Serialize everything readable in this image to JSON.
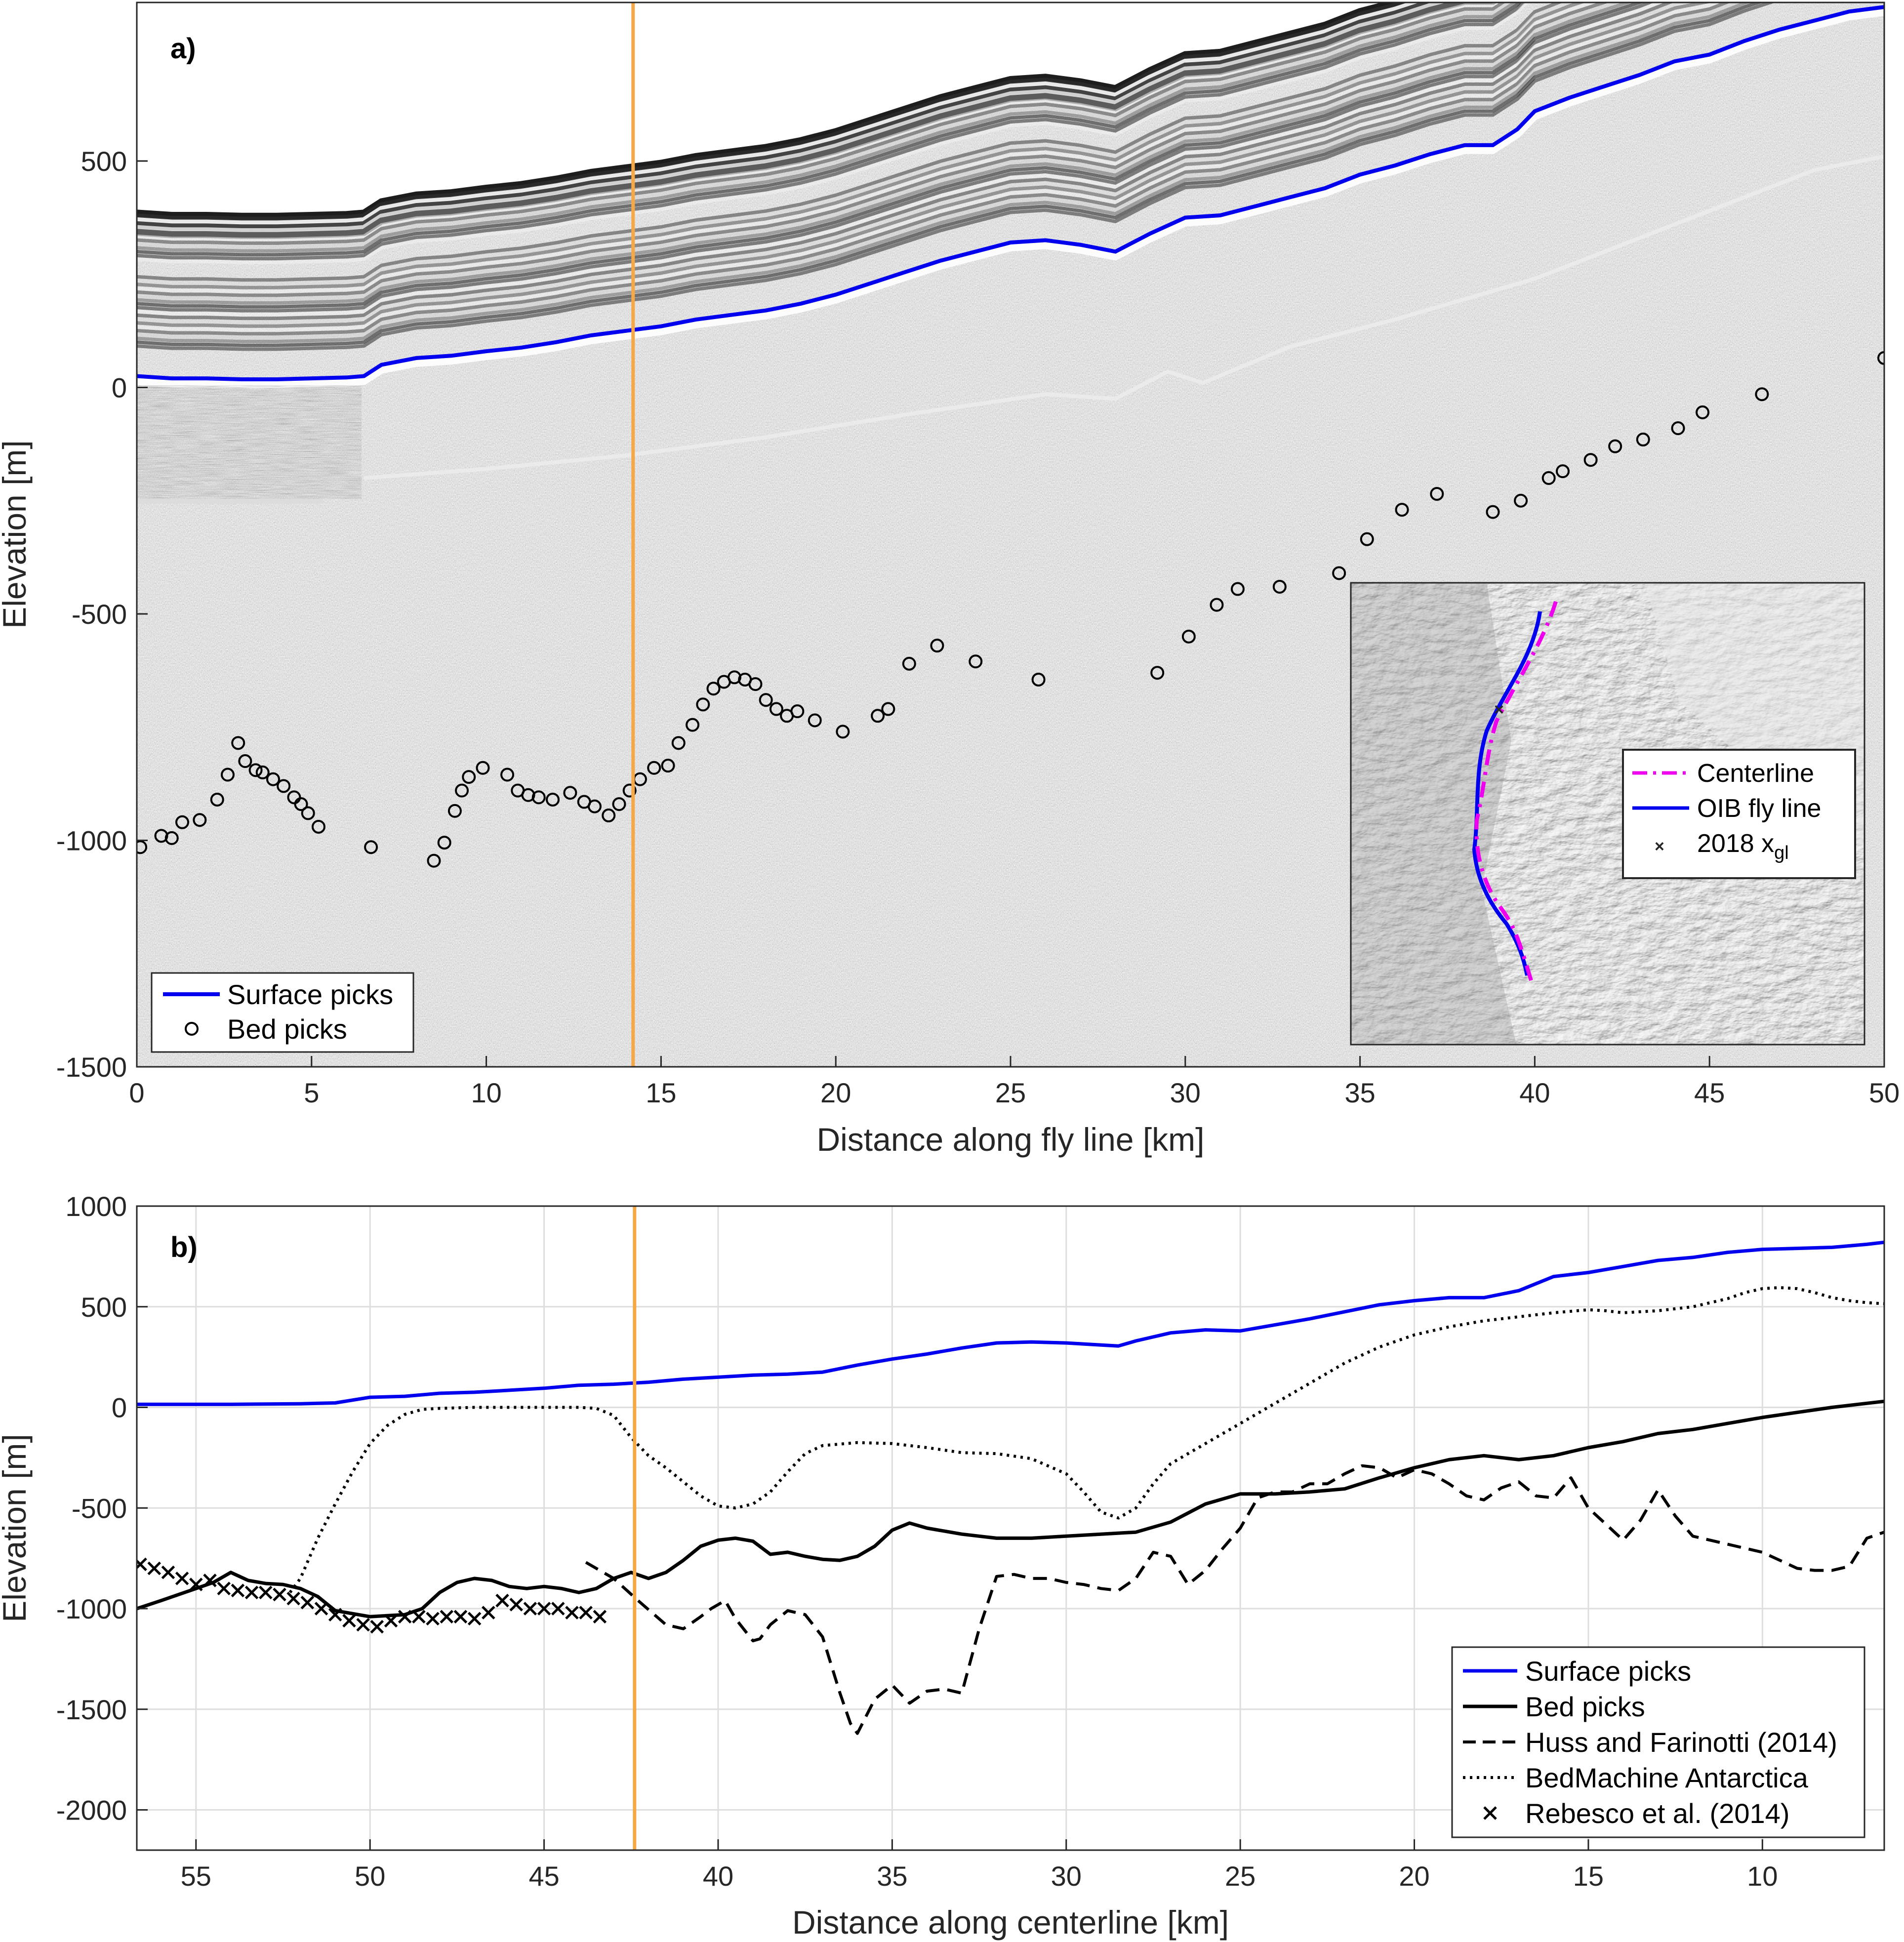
{
  "chart_data": [
    {
      "type": "scatter",
      "panel_label": "a)",
      "xlabel": "Distance along fly line [km]",
      "ylabel": "Elevation [m]",
      "xlim": [
        0,
        50
      ],
      "ylim": [
        -1500,
        850
      ],
      "xticks": [
        "0",
        "5",
        "10",
        "15",
        "20",
        "25",
        "30",
        "35",
        "40",
        "45",
        "50"
      ],
      "yticks": [
        "500",
        "0",
        "-500",
        "-1000",
        "-1500"
      ],
      "background": "radargram (greyscale radar echogram)",
      "vertical_marker_x": 14.2,
      "legend": {
        "placement": "bottom-left",
        "entries": [
          "Surface picks",
          "Bed picks"
        ]
      },
      "series": [
        {
          "name": "Surface picks",
          "style": "line",
          "x": [
            0,
            1,
            2,
            3,
            4,
            5,
            6,
            6.5,
            7,
            8,
            9,
            10,
            11,
            12,
            13,
            14,
            15,
            16,
            17,
            18,
            19,
            20,
            21,
            22,
            23,
            24,
            25,
            26,
            27,
            28,
            29,
            30,
            31,
            32,
            33,
            34,
            35,
            36,
            37,
            38,
            38.8,
            39.5,
            40,
            41,
            42,
            43,
            44,
            45,
            46,
            47,
            48,
            49,
            50
          ],
          "y": [
            25,
            20,
            20,
            18,
            18,
            20,
            22,
            25,
            50,
            65,
            70,
            80,
            88,
            100,
            115,
            125,
            135,
            150,
            160,
            170,
            185,
            205,
            230,
            255,
            280,
            300,
            320,
            325,
            315,
            300,
            340,
            375,
            380,
            400,
            420,
            440,
            470,
            490,
            515,
            535,
            535,
            570,
            610,
            640,
            665,
            690,
            720,
            735,
            765,
            790,
            810,
            830,
            840
          ]
        },
        {
          "name": "Bed picks",
          "style": "markers-circle",
          "x": [
            0.1,
            0.7,
            1,
            1.3,
            1.8,
            2.3,
            2.6,
            2.9,
            3.1,
            3.4,
            3.6,
            3.9,
            4.2,
            4.5,
            4.7,
            4.9,
            5.2,
            6.7,
            8.5,
            8.8,
            9.1,
            9.3,
            9.5,
            9.9,
            10.6,
            10.9,
            11.2,
            11.5,
            11.9,
            12.4,
            12.8,
            13.1,
            13.5,
            13.8,
            14.1,
            14.4,
            14.8,
            15.2,
            15.5,
            15.9,
            16.2,
            16.5,
            16.8,
            17.1,
            17.4,
            17.7,
            18,
            18.3,
            18.6,
            18.9,
            19.4,
            20.2,
            21.2,
            21.5,
            22.1,
            22.9,
            24,
            25.8,
            29.2,
            30.1,
            30.9,
            31.5,
            32.7,
            34.4,
            35.2,
            36.2,
            37.2,
            38.8,
            39.6,
            40.4,
            40.8,
            41.6,
            42.3,
            43.1,
            44.1,
            44.8,
            46.5,
            50
          ]
        }
      ],
      "bed_picks_y": [
        -1015,
        -990,
        -995,
        -960,
        -955,
        -910,
        -855,
        -785,
        -825,
        -845,
        -850,
        -865,
        -880,
        -905,
        -920,
        -940,
        -970,
        -1015,
        -1045,
        -1005,
        -935,
        -890,
        -860,
        -840,
        -855,
        -890,
        -900,
        -905,
        -910,
        -895,
        -915,
        -925,
        -945,
        -920,
        -890,
        -865,
        -840,
        -835,
        -785,
        -745,
        -700,
        -665,
        -650,
        -640,
        -645,
        -655,
        -690,
        -710,
        -725,
        -715,
        -735,
        -760,
        -725,
        -710,
        -610,
        -570,
        -605,
        -645,
        -630,
        -550,
        -480,
        -445,
        -440,
        -410,
        -335,
        -270,
        -235,
        -275,
        -250,
        -200,
        -185,
        -160,
        -130,
        -115,
        -90,
        -55,
        -15,
        65
      ],
      "inset": {
        "type": "map",
        "legend": {
          "placement": "right",
          "entries": [
            "Centerline",
            "OIB fly line",
            "2018 x"
          ],
          "subscript": "gl"
        }
      }
    },
    {
      "type": "line",
      "panel_label": "b)",
      "xlabel": "Distance along centerline [km]",
      "ylabel": "Elevation [m]",
      "xlim": [
        56.7,
        6.5
      ],
      "x_reversed": true,
      "ylim": [
        -2200,
        1000
      ],
      "xticks": [
        "55",
        "50",
        "45",
        "40",
        "35",
        "30",
        "25",
        "20",
        "15",
        "10"
      ],
      "yticks": [
        "1000",
        "500",
        "0",
        "-500",
        "-1000",
        "-1500",
        "-2000"
      ],
      "grid": true,
      "vertical_marker_x": 42.4,
      "legend": {
        "placement": "bottom-right",
        "entries": [
          "Surface picks",
          "Bed picks",
          "Huss and Farinotti (2014)",
          "BedMachine Antarctica",
          "Rebesco et al. (2014)"
        ]
      },
      "series": [
        {
          "name": "Surface picks",
          "style": "solid-blue",
          "x": [
            56.7,
            54,
            52,
            51,
            50,
            49,
            48,
            47,
            46,
            45,
            44,
            43,
            42,
            41,
            40,
            39,
            38,
            37,
            36,
            35,
            34,
            33,
            32,
            31,
            30,
            29,
            28.5,
            28,
            27,
            26,
            25,
            24,
            23,
            22,
            21,
            20,
            19,
            18,
            17,
            16,
            15,
            14,
            13,
            12,
            11,
            10,
            9,
            8,
            7,
            6.5
          ],
          "y": [
            15,
            15,
            18,
            22,
            50,
            55,
            70,
            75,
            85,
            95,
            110,
            115,
            125,
            140,
            150,
            160,
            165,
            175,
            210,
            240,
            265,
            295,
            320,
            325,
            320,
            310,
            305,
            330,
            370,
            385,
            380,
            410,
            440,
            475,
            510,
            530,
            545,
            545,
            580,
            650,
            670,
            700,
            730,
            745,
            770,
            785,
            790,
            795,
            810,
            820
          ]
        },
        {
          "name": "Bed picks",
          "style": "solid-black",
          "x": [
            56.7,
            56,
            55,
            54.5,
            54,
            53.5,
            53,
            52.5,
            52,
            51.5,
            51,
            50,
            49,
            48.5,
            48,
            47.5,
            47,
            46.5,
            46,
            45.5,
            45,
            44.5,
            44,
            43.5,
            43,
            42.5,
            42,
            41.5,
            41,
            40.5,
            40,
            39.5,
            39,
            38.5,
            38,
            37.5,
            37,
            36.5,
            36,
            35.5,
            35,
            34.5,
            34,
            33.5,
            33,
            32.5,
            32,
            31,
            30,
            29,
            28,
            27,
            26,
            25,
            24,
            23,
            22,
            21,
            20,
            19,
            18,
            17,
            16,
            15,
            14,
            13,
            12,
            11,
            10,
            9,
            8,
            7,
            6.5
          ],
          "y": [
            -1000,
            -960,
            -900,
            -870,
            -820,
            -860,
            -875,
            -880,
            -900,
            -940,
            -1010,
            -1040,
            -1030,
            -1000,
            -920,
            -870,
            -850,
            -860,
            -890,
            -900,
            -890,
            -900,
            -920,
            -900,
            -850,
            -820,
            -850,
            -820,
            -760,
            -690,
            -660,
            -650,
            -665,
            -730,
            -720,
            -740,
            -755,
            -760,
            -740,
            -690,
            -610,
            -575,
            -600,
            -615,
            -630,
            -640,
            -650,
            -650,
            -640,
            -630,
            -620,
            -570,
            -480,
            -430,
            -430,
            -420,
            -405,
            -350,
            -300,
            -260,
            -240,
            -260,
            -240,
            -200,
            -170,
            -130,
            -110,
            -80,
            -50,
            -25,
            0,
            20,
            30
          ]
        },
        {
          "name": "Huss and Farinotti (2014)",
          "style": "dashed-black",
          "x": [
            43.8,
            43,
            42.3,
            41.5,
            41,
            40.5,
            40.2,
            39.8,
            39.5,
            39,
            38.8,
            38.5,
            38,
            37.5,
            37,
            36.5,
            36.2,
            36,
            35.5,
            35,
            34.5,
            34,
            33.5,
            33,
            32.5,
            32,
            31.5,
            31,
            30.5,
            30,
            29.5,
            29,
            28.5,
            28,
            27.5,
            27,
            26.5,
            26,
            25.5,
            25,
            24.5,
            24,
            23.5,
            23,
            22.5,
            22,
            21.5,
            21,
            20.5,
            20,
            19.5,
            19,
            18.5,
            18,
            17.5,
            17,
            16.5,
            16,
            15.5,
            15,
            14.5,
            14,
            13.5,
            13,
            12.5,
            12,
            11.5,
            11,
            10.5,
            10,
            9.5,
            9,
            8.5,
            8,
            7.5,
            7,
            6.5
          ],
          "y": [
            -770,
            -850,
            -960,
            -1080,
            -1100,
            -1040,
            -1000,
            -960,
            -1050,
            -1160,
            -1150,
            -1080,
            -1010,
            -1030,
            -1140,
            -1420,
            -1570,
            -1620,
            -1450,
            -1380,
            -1470,
            -1410,
            -1400,
            -1420,
            -1100,
            -840,
            -830,
            -850,
            -850,
            -870,
            -880,
            -900,
            -910,
            -850,
            -720,
            -740,
            -880,
            -810,
            -700,
            -600,
            -450,
            -420,
            -420,
            -380,
            -380,
            -330,
            -290,
            -300,
            -350,
            -310,
            -330,
            -380,
            -440,
            -460,
            -400,
            -370,
            -440,
            -450,
            -350,
            -500,
            -580,
            -660,
            -560,
            -410,
            -540,
            -640,
            -660,
            -680,
            -700,
            -720,
            -760,
            -800,
            -810,
            -810,
            -790,
            -650,
            -620
          ]
        },
        {
          "name": "BedMachine Antarctica",
          "style": "dotted-black",
          "x": [
            52.3,
            52,
            51.5,
            51,
            50.5,
            50,
            49.5,
            49,
            48.5,
            48,
            47,
            46,
            45,
            44,
            43.5,
            43,
            42.5,
            42,
            41.5,
            41,
            40.5,
            40,
            39.5,
            39,
            38.5,
            38,
            37.5,
            37,
            36,
            35,
            34,
            33,
            32,
            31,
            30,
            29.5,
            29,
            28.5,
            28,
            27.5,
            27,
            26,
            25,
            24,
            23,
            22,
            21,
            20,
            19,
            18,
            17,
            16,
            15,
            14.5,
            14,
            13.5,
            13,
            12,
            11,
            10.5,
            10,
            9.5,
            9,
            8.5,
            8,
            7.5,
            7,
            6.5
          ],
          "y": [
            -920,
            -850,
            -650,
            -480,
            -320,
            -180,
            -90,
            -35,
            -10,
            -5,
            0,
            0,
            0,
            0,
            -5,
            -40,
            -150,
            -240,
            -300,
            -370,
            -440,
            -490,
            -500,
            -480,
            -420,
            -320,
            -230,
            -190,
            -175,
            -180,
            -200,
            -225,
            -230,
            -255,
            -330,
            -420,
            -520,
            -550,
            -500,
            -380,
            -280,
            -180,
            -80,
            20,
            120,
            220,
            300,
            360,
            400,
            430,
            450,
            470,
            485,
            480,
            470,
            475,
            480,
            500,
            540,
            570,
            590,
            595,
            590,
            570,
            545,
            530,
            520,
            515
          ]
        },
        {
          "name": "Rebesco et al. (2014)",
          "style": "markers-x",
          "x": [
            56.6,
            56.2,
            55.8,
            55.4,
            55,
            54.6,
            54.2,
            53.8,
            53.4,
            53,
            52.6,
            52.2,
            51.8,
            51.4,
            51,
            50.6,
            50.2,
            49.8,
            49.4,
            49,
            48.6,
            48.2,
            47.8,
            47.4,
            47,
            46.6,
            46.2,
            45.8,
            45.4,
            45,
            44.6,
            44.2,
            43.8,
            43.4
          ],
          "y": [
            -780,
            -800,
            -820,
            -850,
            -880,
            -860,
            -900,
            -910,
            -920,
            -920,
            -930,
            -950,
            -970,
            -1000,
            -1030,
            -1060,
            -1080,
            -1090,
            -1060,
            -1040,
            -1040,
            -1050,
            -1040,
            -1040,
            -1050,
            -1020,
            -960,
            -980,
            -1000,
            -1000,
            -1000,
            -1020,
            -1020,
            -1040
          ]
        }
      ]
    }
  ]
}
